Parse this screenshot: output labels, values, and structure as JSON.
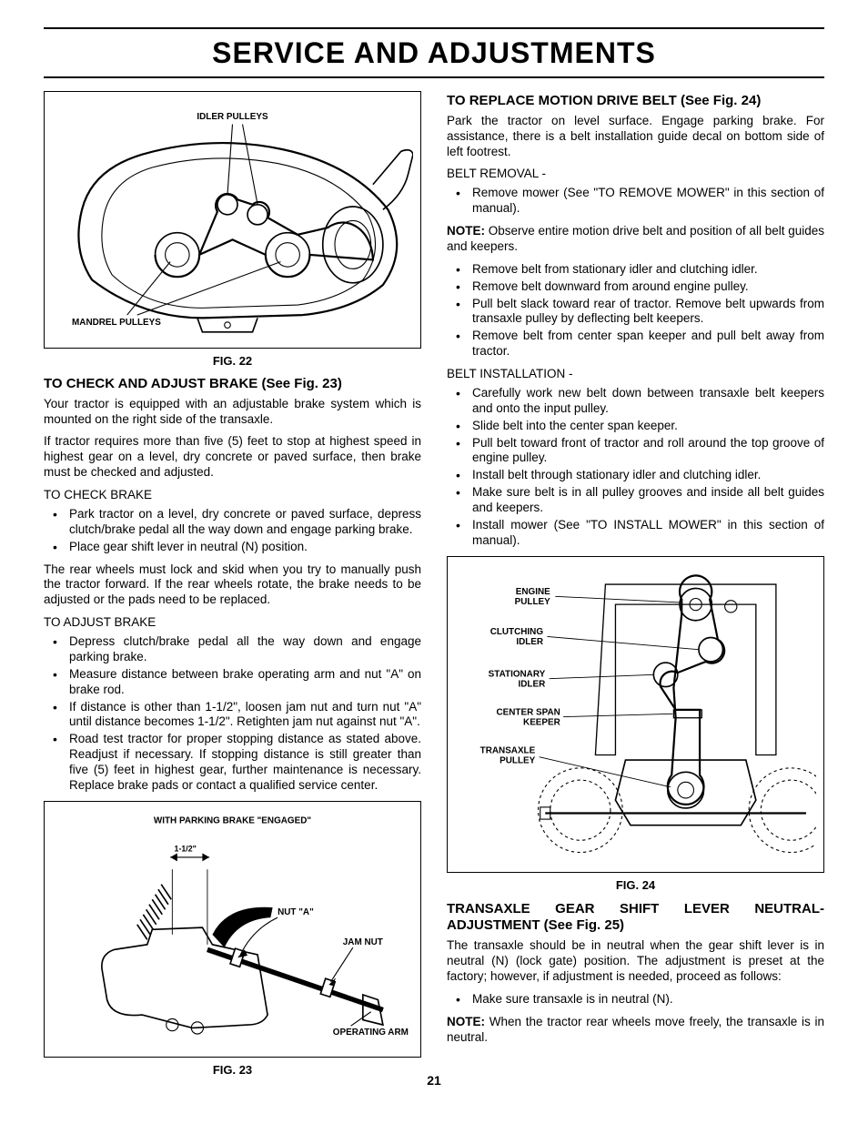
{
  "page_title": "SERVICE AND ADJUSTMENTS",
  "page_number": "21",
  "fig22": {
    "caption": "FIG. 22",
    "labels": {
      "idler": "IDLER PULLEYS",
      "mandrel": "MANDREL PULLEYS"
    }
  },
  "fig23": {
    "caption": "FIG. 23",
    "labels": {
      "header": "WITH PARKING BRAKE \"ENGAGED\"",
      "dim": "1-1/2\"",
      "nut_a": "NUT \"A\"",
      "jam": "JAM NUT",
      "arm": "OPERATING ARM"
    }
  },
  "fig24": {
    "caption": "FIG. 24",
    "labels": {
      "engine": "ENGINE",
      "pulley": "PULLEY",
      "clutching": "CLUTCHING",
      "idler": "IDLER",
      "stationary": "STATIONARY",
      "idler2": "IDLER",
      "center": "CENTER SPAN",
      "keeper": "KEEPER",
      "transaxle": "TRANSAXLE",
      "pulley2": "PULLEY"
    }
  },
  "left": {
    "h_brake": "TO CHECK AND ADJUST BRAKE (See Fig. 23)",
    "p1": "Your tractor is equipped with an adjustable brake system which is mounted on the right side of the transaxle.",
    "p2": "If tractor requires more than five (5) feet to stop at highest speed in highest gear on a level, dry concrete or paved surface, then brake must be checked and adjusted.",
    "sub_check": "TO CHECK BRAKE",
    "check": [
      "Park tractor on a level, dry concrete or paved surface, depress clutch/brake pedal all the way down and engage parking brake.",
      "Place gear shift lever in neutral (N) position."
    ],
    "p3": "The rear wheels must lock and skid when you try to manually push the tractor forward. If the rear wheels rotate, the brake needs to be adjusted or the pads need to be replaced.",
    "sub_adjust": "TO ADJUST BRAKE",
    "adjust": [
      "Depress clutch/brake pedal all the way down and engage parking brake.",
      "Measure distance between brake operating arm and nut \"A\" on brake rod.",
      "If distance is other than 1-1/2\", loosen jam nut and turn nut \"A\" until distance becomes 1-1/2\".  Retighten jam nut against nut \"A\".",
      "Road test tractor for proper stopping distance as stated above.  Readjust if necessary.  If stopping distance is still greater than five (5) feet in highest gear, further maintenance is necessary.  Replace brake pads or contact a qualified service center."
    ]
  },
  "right": {
    "h_motion": "TO REPLACE MOTION DRIVE BELT (See Fig. 24)",
    "p1": "Park the tractor on level surface.  Engage parking brake.  For assistance, there is a belt installation guide decal on bottom side of left footrest.",
    "sub_removal": "BELT REMOVAL -",
    "removal1": [
      "Remove mower (See \"TO REMOVE MOWER\" in this section of manual)."
    ],
    "note1_b": "NOTE:",
    "note1": " Observe entire motion drive belt and position of all belt guides and keepers.",
    "removal2": [
      "Remove belt from stationary idler and clutching idler.",
      "Remove belt downward from around engine pulley.",
      "Pull belt slack toward rear of tractor.  Remove belt upwards from transaxle pulley by deflecting belt keepers.",
      "Remove belt from center span keeper and pull belt away from tractor."
    ],
    "sub_install": "BELT INSTALLATION -",
    "install": [
      "Carefully work new belt down between transaxle belt keepers and onto the input pulley.",
      "Slide belt into the center span keeper.",
      "Pull belt toward front of tractor and roll around the top groove of engine pulley.",
      "Install belt through stationary idler and clutching idler.",
      "Make sure belt is in all pulley grooves and inside all belt guides and keepers.",
      "Install mower (See \"TO INSTALL MOWER\" in this section of manual)."
    ],
    "h_trans": "TRANSAXLE GEAR SHIFT LEVER NEUTRAL- ADJUSTMENT (See Fig. 25)",
    "p2": "The transaxle should be in neutral when the gear shift lever is in neutral (N) (lock gate) position. The adjustment is preset at the factory; however, if adjustment is needed, proceed as follows:",
    "trans": [
      "Make sure transaxle is in neutral (N)."
    ],
    "note2_b": "NOTE:",
    "note2": " When the tractor rear wheels move freely, the transaxle is in neutral."
  },
  "style": {
    "page_bg": "#ffffff",
    "text_color": "#000000",
    "border_color": "#000000",
    "title_fontsize": 32,
    "body_fontsize": 13.5,
    "heading_fontsize": 15,
    "label_fontsize": 9
  }
}
